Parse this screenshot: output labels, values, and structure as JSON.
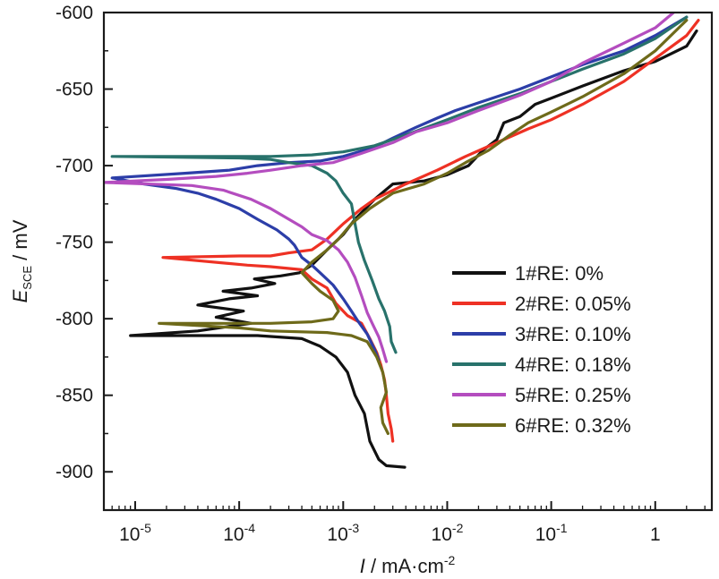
{
  "chart_data": {
    "type": "line",
    "x_scale": "log",
    "xlim": [
      5e-06,
      3.5
    ],
    "ylim": [
      -925,
      -600
    ],
    "xlabel": {
      "italic": "I",
      "rest": " / mA·cm",
      "sup": "-2"
    },
    "ylabel": {
      "italic": "E",
      "sub": "SCE",
      "rest": " / mV"
    },
    "y_ticks": [
      {
        "value": -600,
        "label": "-600"
      },
      {
        "value": -650,
        "label": "-650"
      },
      {
        "value": -700,
        "label": "-700"
      },
      {
        "value": -750,
        "label": "-750"
      },
      {
        "value": -800,
        "label": "-800"
      },
      {
        "value": -850,
        "label": "-850"
      },
      {
        "value": -900,
        "label": "-900"
      }
    ],
    "x_ticks": [
      {
        "value": 1e-05,
        "base": "10",
        "exp": "-5"
      },
      {
        "value": 0.0001,
        "base": "10",
        "exp": "-4"
      },
      {
        "value": 0.001,
        "base": "10",
        "exp": "-3"
      },
      {
        "value": 0.01,
        "base": "10",
        "exp": "-2"
      },
      {
        "value": 0.1,
        "base": "10",
        "exp": "-1"
      },
      {
        "value": 1,
        "base": "1",
        "exp": ""
      }
    ],
    "legend_position": "lower-right",
    "series": [
      {
        "name": "1#RE: 0%",
        "color": "#111111",
        "points": [
          [
            0.0039,
            -897
          ],
          [
            0.0026,
            -896
          ],
          [
            0.0022,
            -892
          ],
          [
            0.0018,
            -880
          ],
          [
            0.0016,
            -862
          ],
          [
            0.0013,
            -850
          ],
          [
            0.0011,
            -835
          ],
          [
            0.00085,
            -825
          ],
          [
            0.0006,
            -818
          ],
          [
            0.0004,
            -813
          ],
          [
            0.00015,
            -811
          ],
          [
            9e-06,
            -811
          ],
          [
            4e-05,
            -808
          ],
          [
            8e-05,
            -805
          ],
          [
            0.00013,
            -803
          ],
          [
            6e-05,
            -799
          ],
          [
            0.00011,
            -795
          ],
          [
            4e-05,
            -791
          ],
          [
            8e-05,
            -787
          ],
          [
            0.00015,
            -785
          ],
          [
            7e-05,
            -782
          ],
          [
            0.00013,
            -780
          ],
          [
            0.00022,
            -777
          ],
          [
            0.00014,
            -774
          ],
          [
            0.00025,
            -772
          ],
          [
            0.00038,
            -770
          ],
          [
            0.0005,
            -765
          ],
          [
            0.0007,
            -755
          ],
          [
            0.001,
            -745
          ],
          [
            0.0013,
            -735
          ],
          [
            0.002,
            -722
          ],
          [
            0.003,
            -712
          ],
          [
            0.006,
            -710
          ],
          [
            0.01,
            -706
          ],
          [
            0.016,
            -700
          ],
          [
            0.022,
            -690
          ],
          [
            0.03,
            -683
          ],
          [
            0.035,
            -672
          ],
          [
            0.05,
            -668
          ],
          [
            0.07,
            -660
          ],
          [
            0.1,
            -656
          ],
          [
            0.2,
            -648
          ],
          [
            0.5,
            -638
          ],
          [
            1.0,
            -632
          ],
          [
            2.0,
            -622
          ],
          [
            2.5,
            -612
          ]
        ]
      },
      {
        "name": "2#RE: 0.05%",
        "color": "#ee3124",
        "points": [
          [
            0.003,
            -880
          ],
          [
            0.0029,
            -872
          ],
          [
            0.0027,
            -862
          ],
          [
            0.0026,
            -850
          ],
          [
            0.0025,
            -840
          ],
          [
            0.0023,
            -830
          ],
          [
            0.0021,
            -822
          ],
          [
            0.0018,
            -813
          ],
          [
            0.0015,
            -803
          ],
          [
            0.0011,
            -798
          ],
          [
            0.00085,
            -790
          ],
          [
            0.0007,
            -780
          ],
          [
            0.0005,
            -774
          ],
          [
            0.0004,
            -768
          ],
          [
            0.0002,
            -766
          ],
          [
            0.00012,
            -765
          ],
          [
            1.85e-05,
            -760
          ],
          [
            0.0001,
            -759
          ],
          [
            0.0002,
            -759
          ],
          [
            0.0003,
            -757
          ],
          [
            0.0005,
            -755
          ],
          [
            0.0007,
            -748
          ],
          [
            0.001,
            -738
          ],
          [
            0.0015,
            -728
          ],
          [
            0.002,
            -722
          ],
          [
            0.004,
            -712
          ],
          [
            0.008,
            -703
          ],
          [
            0.015,
            -694
          ],
          [
            0.03,
            -685
          ],
          [
            0.06,
            -676
          ],
          [
            0.1,
            -670
          ],
          [
            0.2,
            -660
          ],
          [
            0.5,
            -645
          ],
          [
            1.0,
            -630
          ],
          [
            2.0,
            -615
          ],
          [
            2.6,
            -605
          ]
        ]
      },
      {
        "name": "3#RE: 0.10%",
        "color": "#2c3ea8",
        "points": [
          [
            0.0022,
            -827
          ],
          [
            0.002,
            -820
          ],
          [
            0.0017,
            -810
          ],
          [
            0.0014,
            -802
          ],
          [
            0.0012,
            -795
          ],
          [
            0.001,
            -787
          ],
          [
            0.0008,
            -778
          ],
          [
            0.0006,
            -770
          ],
          [
            0.0005,
            -765
          ],
          [
            0.0004,
            -760
          ],
          [
            0.00034,
            -752
          ],
          [
            0.0003,
            -748
          ],
          [
            0.00023,
            -742
          ],
          [
            0.00015,
            -735
          ],
          [
            0.0001,
            -728
          ],
          [
            6e-05,
            -722
          ],
          [
            4e-05,
            -718
          ],
          [
            2.5e-05,
            -715
          ],
          [
            1.2e-05,
            -712
          ],
          [
            6e-06,
            -708
          ],
          [
            3e-05,
            -705
          ],
          [
            8e-05,
            -703
          ],
          [
            0.00015,
            -700
          ],
          [
            0.0003,
            -698
          ],
          [
            0.0006,
            -697
          ],
          [
            0.001,
            -694
          ],
          [
            0.002,
            -688
          ],
          [
            0.003,
            -682
          ],
          [
            0.005,
            -675
          ],
          [
            0.008,
            -669
          ],
          [
            0.012,
            -664
          ],
          [
            0.02,
            -659
          ],
          [
            0.05,
            -650
          ],
          [
            0.1,
            -642
          ],
          [
            0.2,
            -634
          ],
          [
            0.5,
            -625
          ],
          [
            1.0,
            -615
          ],
          [
            2.0,
            -603
          ]
        ]
      },
      {
        "name": "4#RE: 0.18%",
        "color": "#28726b",
        "points": [
          [
            0.0032,
            -822
          ],
          [
            0.0029,
            -815
          ],
          [
            0.0028,
            -805
          ],
          [
            0.0025,
            -795
          ],
          [
            0.0022,
            -787
          ],
          [
            0.0019,
            -775
          ],
          [
            0.0016,
            -762
          ],
          [
            0.0014,
            -750
          ],
          [
            0.0013,
            -738
          ],
          [
            0.0012,
            -725
          ],
          [
            0.001,
            -718
          ],
          [
            0.00085,
            -710
          ],
          [
            0.0007,
            -705
          ],
          [
            0.0005,
            -700
          ],
          [
            0.0003,
            -698
          ],
          [
            0.0002,
            -696
          ],
          [
            0.0001,
            -695
          ],
          [
            6e-06,
            -694
          ],
          [
            5e-05,
            -694
          ],
          [
            0.0002,
            -694
          ],
          [
            0.0005,
            -693
          ],
          [
            0.001,
            -691
          ],
          [
            0.002,
            -687
          ],
          [
            0.004,
            -680
          ],
          [
            0.01,
            -670
          ],
          [
            0.02,
            -662
          ],
          [
            0.05,
            -653
          ],
          [
            0.1,
            -645
          ],
          [
            0.2,
            -637
          ],
          [
            0.5,
            -627
          ],
          [
            1.0,
            -617
          ],
          [
            2.0,
            -603
          ]
        ]
      },
      {
        "name": "5#RE: 0.25%",
        "color": "#b44dbf",
        "points": [
          [
            0.0026,
            -828
          ],
          [
            0.0024,
            -820
          ],
          [
            0.0022,
            -812
          ],
          [
            0.0019,
            -803
          ],
          [
            0.0017,
            -796
          ],
          [
            0.0015,
            -785
          ],
          [
            0.0013,
            -773
          ],
          [
            0.0011,
            -763
          ],
          [
            0.0009,
            -755
          ],
          [
            0.0007,
            -749
          ],
          [
            0.0005,
            -745
          ],
          [
            0.0004,
            -740
          ],
          [
            0.0003,
            -735
          ],
          [
            0.0002,
            -728
          ],
          [
            0.00013,
            -722
          ],
          [
            7e-05,
            -716
          ],
          [
            3.5e-05,
            -713
          ],
          [
            5e-06,
            -711
          ],
          [
            2e-05,
            -709
          ],
          [
            6e-05,
            -707
          ],
          [
            0.00012,
            -705
          ],
          [
            0.0002,
            -703
          ],
          [
            0.0004,
            -700
          ],
          [
            0.0008,
            -698
          ],
          [
            0.0015,
            -692
          ],
          [
            0.003,
            -685
          ],
          [
            0.005,
            -678
          ],
          [
            0.01,
            -672
          ],
          [
            0.02,
            -664
          ],
          [
            0.05,
            -654
          ],
          [
            0.1,
            -645
          ],
          [
            0.2,
            -633
          ],
          [
            0.5,
            -620
          ],
          [
            1.0,
            -610
          ],
          [
            1.5,
            -600
          ]
        ]
      },
      {
        "name": "6#RE: 0.32%",
        "color": "#6e6a1a",
        "points": [
          [
            0.0027,
            -875
          ],
          [
            0.0024,
            -868
          ],
          [
            0.0023,
            -858
          ],
          [
            0.0026,
            -848
          ],
          [
            0.0024,
            -835
          ],
          [
            0.0021,
            -825
          ],
          [
            0.0017,
            -815
          ],
          [
            0.0012,
            -811
          ],
          [
            0.0007,
            -809
          ],
          [
            0.0002,
            -808
          ],
          [
            0.0001,
            -806
          ],
          [
            1.7e-05,
            -803
          ],
          [
            0.0002,
            -803
          ],
          [
            0.0005,
            -802
          ],
          [
            0.0008,
            -800
          ],
          [
            0.0009,
            -795
          ],
          [
            0.0008,
            -788
          ],
          [
            0.0006,
            -782
          ],
          [
            0.0005,
            -777
          ],
          [
            0.0004,
            -770
          ],
          [
            0.0005,
            -763
          ],
          [
            0.0007,
            -755
          ],
          [
            0.0009,
            -748
          ],
          [
            0.0012,
            -738
          ],
          [
            0.0018,
            -728
          ],
          [
            0.003,
            -718
          ],
          [
            0.006,
            -712
          ],
          [
            0.01,
            -705
          ],
          [
            0.015,
            -698
          ],
          [
            0.025,
            -690
          ],
          [
            0.04,
            -680
          ],
          [
            0.06,
            -672
          ],
          [
            0.1,
            -665
          ],
          [
            0.2,
            -655
          ],
          [
            0.5,
            -640
          ],
          [
            1.0,
            -625
          ],
          [
            2.0,
            -605
          ]
        ]
      }
    ]
  }
}
